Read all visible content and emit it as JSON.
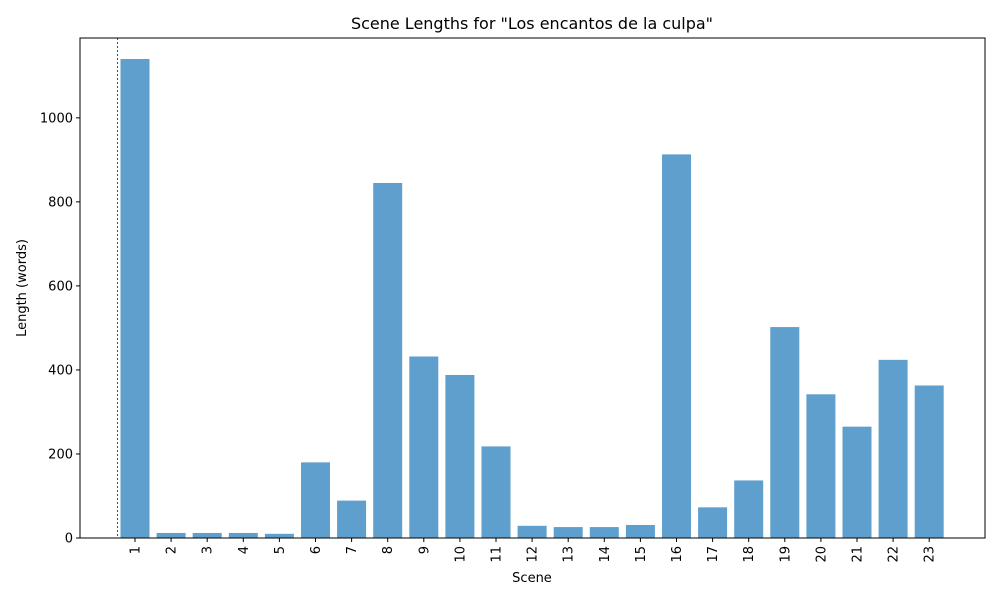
{
  "chart_data": {
    "type": "bar",
    "title": "Scene Lengths for \"Los encantos de la culpa\"",
    "xlabel": "Scene",
    "ylabel": "Length (words)",
    "categories": [
      "1",
      "2",
      "3",
      "4",
      "5",
      "6",
      "7",
      "8",
      "9",
      "10",
      "11",
      "12",
      "13",
      "14",
      "15",
      "16",
      "17",
      "18",
      "19",
      "20",
      "21",
      "22",
      "23"
    ],
    "values": [
      1140,
      12,
      12,
      12,
      10,
      180,
      89,
      845,
      432,
      388,
      218,
      29,
      26,
      26,
      31,
      913,
      73,
      137,
      502,
      342,
      265,
      424,
      363
    ],
    "yticks": [
      0,
      200,
      400,
      600,
      800,
      1000
    ],
    "ylim": [
      0,
      1190
    ],
    "bar_color": "#5f9fcd",
    "grid": false,
    "reference_line": {
      "style": "dashed",
      "x_position": "left of scene 1"
    }
  }
}
